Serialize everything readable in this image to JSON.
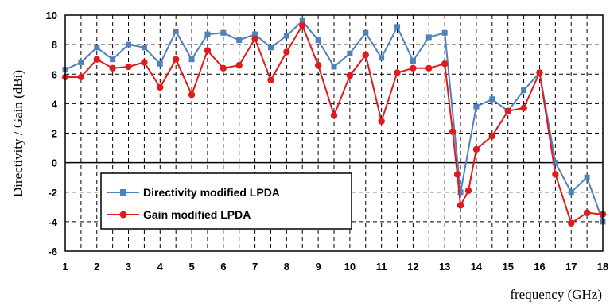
{
  "chart_data": {
    "type": "line",
    "xlabel": "frequency (GHz)",
    "ylabel": "Directivity / Gain (dBi)",
    "xlim": [
      1,
      18
    ],
    "ylim": [
      -6,
      10
    ],
    "xticks": [
      "1",
      "2",
      "3",
      "4",
      "5",
      "6",
      "7",
      "8",
      "9",
      "10",
      "11",
      "12",
      "13",
      "14",
      "15",
      "16",
      "17",
      "18"
    ],
    "yticks": [
      "10",
      "8",
      "6",
      "4",
      "2",
      "0",
      "-2",
      "-4",
      "-6"
    ],
    "grid": true,
    "legend_position": "lower-left",
    "series": [
      {
        "name": "Directivity modified LPDA",
        "color": "#4f81bd",
        "marker": "square",
        "x": [
          1,
          1.5,
          2,
          2.5,
          3,
          3.5,
          4,
          4.5,
          5,
          5.5,
          6,
          6.5,
          7,
          7.5,
          8,
          8.5,
          9,
          9.5,
          10,
          10.5,
          11,
          11.5,
          12,
          12.5,
          13,
          13.5,
          14,
          14.5,
          15,
          15.5,
          16,
          16.5,
          17,
          17.5,
          18
        ],
        "y": [
          6.3,
          6.8,
          7.8,
          7.0,
          8.0,
          7.8,
          6.7,
          8.9,
          7.0,
          8.7,
          8.8,
          8.3,
          8.7,
          7.8,
          8.6,
          9.6,
          8.3,
          6.5,
          7.4,
          8.8,
          7.1,
          9.2,
          6.9,
          8.5,
          8.8,
          -2.0,
          3.8,
          4.3,
          3.5,
          4.9,
          6.1,
          0.0,
          -2.0,
          -1.0,
          -4.0
        ]
      },
      {
        "name": "Gain modified LPDA",
        "color": "#e31a1c",
        "marker": "circle",
        "x": [
          1,
          1.5,
          2,
          2.5,
          3,
          3.5,
          4,
          4.5,
          5,
          5.5,
          6,
          6.5,
          7,
          7.5,
          8,
          8.5,
          9,
          9.5,
          10,
          10.5,
          11,
          11.5,
          12,
          12.5,
          13,
          13.25,
          13.4,
          13.5,
          13.75,
          14,
          14.5,
          15,
          15.5,
          16,
          16.5,
          17,
          17.5,
          18
        ],
        "y": [
          5.8,
          5.8,
          7.0,
          6.4,
          6.5,
          6.8,
          5.1,
          7.0,
          4.6,
          7.6,
          6.4,
          6.6,
          8.4,
          5.6,
          7.5,
          9.3,
          6.6,
          3.2,
          5.9,
          7.3,
          2.8,
          6.1,
          6.4,
          6.4,
          6.7,
          2.1,
          -0.8,
          -2.9,
          -1.9,
          0.9,
          1.8,
          3.5,
          3.7,
          6.1,
          -0.8,
          -4.1,
          -3.4,
          -3.5
        ]
      }
    ]
  }
}
